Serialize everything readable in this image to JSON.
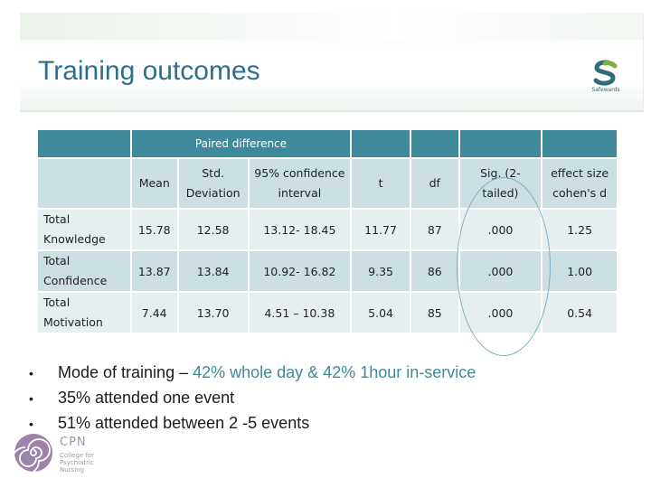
{
  "slide": {
    "title": "Training outcomes"
  },
  "brand_logo": {
    "icon": "safewards-s-logo",
    "name": "Safewards",
    "color": "#2f6b7a"
  },
  "table": {
    "group_header": "Paired difference",
    "columns": [
      "Mean",
      "Std. Deviation",
      "95% confidence interval",
      "t",
      "df",
      "Sig. (2-tailed)",
      "effect size cohen's d"
    ],
    "rows": [
      {
        "label": "Total Knowledge",
        "values": [
          "15.78",
          "12.58",
          "13.12- 18.45",
          "11.77",
          "87",
          ".000",
          "1.25"
        ]
      },
      {
        "label": "Total Confidence",
        "values": [
          "13.87",
          "13.84",
          "10.92- 16.82",
          "9.35",
          "86",
          ".000",
          "1.00"
        ]
      },
      {
        "label": "Total Motivation",
        "values": [
          "7.44",
          "13.70",
          "4.51 – 10.38",
          "5.04",
          "85",
          ".000",
          "0.54"
        ]
      }
    ],
    "header_color": "#3f8a9a",
    "row_colors": [
      "#e6eef0",
      "#ccdfe3"
    ]
  },
  "bullets": [
    {
      "prefix": "Mode of training – ",
      "highlight": "42% whole day & 42% 1hour in-service",
      "suffix": ""
    },
    {
      "prefix": "35% attended one event",
      "highlight": "",
      "suffix": ""
    },
    {
      "prefix": "51% attended between 2 -5 events",
      "highlight": "",
      "suffix": ""
    }
  ],
  "cpn_logo": {
    "icon": "swirl-logo",
    "name": "CPN",
    "subtitle": "College for Psychiatric Nursing"
  }
}
